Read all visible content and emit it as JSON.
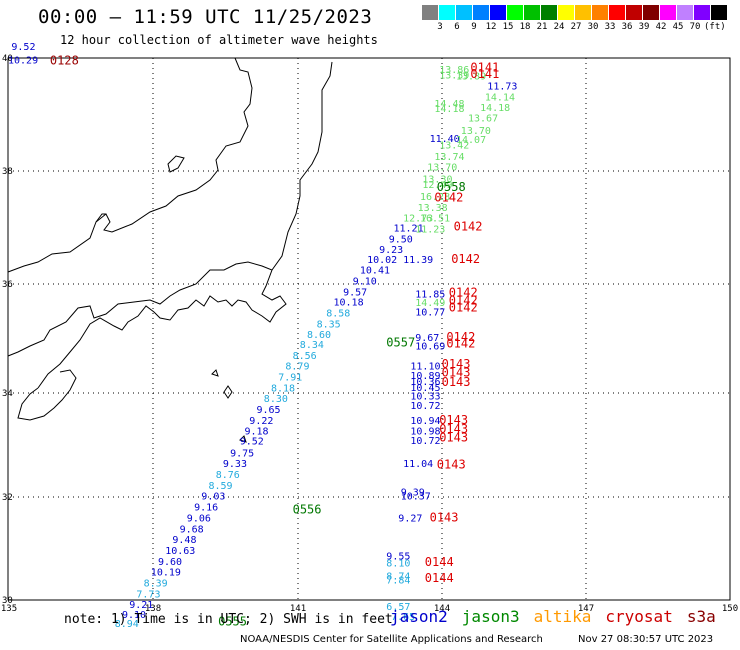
{
  "header": {
    "title": "00:00 – 11:59 UTC 11/25/2023",
    "subtitle": "12 hour collection of altimeter wave heights"
  },
  "colorbar": {
    "colors": [
      "#808080",
      "#00ffff",
      "#00c0ff",
      "#0080ff",
      "#0000ff",
      "#00ff00",
      "#00c000",
      "#008000",
      "#ffff00",
      "#ffc000",
      "#ff8000",
      "#ff0000",
      "#c00000",
      "#800000",
      "#ff00ff",
      "#c080ff",
      "#8000ff",
      "#000000"
    ],
    "labels": [
      "3",
      "6",
      "9",
      "12",
      "15",
      "18",
      "21",
      "24",
      "27",
      "30",
      "33",
      "36",
      "39",
      "42",
      "45",
      "70",
      "(ft)"
    ]
  },
  "axes": {
    "lat_labels": [
      "40",
      "38",
      "36",
      "34",
      "32",
      "30"
    ],
    "lon_labels": [
      "135",
      "138",
      "141",
      "144",
      "147",
      "150"
    ]
  },
  "wave_labels": [
    {
      "lon": 143.95,
      "lat": 39.72,
      "v": "13.86",
      "c": "#66dd66"
    },
    {
      "lon": 143.95,
      "lat": 39.62,
      "v": "13.39",
      "c": "#66dd66"
    },
    {
      "lon": 144.3,
      "lat": 39.6,
      "v": "13.89",
      "c": "#66dd66"
    },
    {
      "lon": 144.95,
      "lat": 39.42,
      "v": "11.73",
      "c": "#0000cc"
    },
    {
      "lon": 144.9,
      "lat": 39.22,
      "v": "14.14",
      "c": "#66dd66"
    },
    {
      "lon": 143.85,
      "lat": 39.1,
      "v": "14.48",
      "c": "#66dd66"
    },
    {
      "lon": 143.85,
      "lat": 39.0,
      "v": "14.18",
      "c": "#66dd66"
    },
    {
      "lon": 144.8,
      "lat": 39.02,
      "v": "14.18",
      "c": "#66dd66"
    },
    {
      "lon": 144.55,
      "lat": 38.83,
      "v": "13.67",
      "c": "#66dd66"
    },
    {
      "lon": 144.4,
      "lat": 38.6,
      "v": "13.70",
      "c": "#66dd66"
    },
    {
      "lon": 143.75,
      "lat": 38.45,
      "v": "11.40",
      "c": "#0000cc"
    },
    {
      "lon": 144.3,
      "lat": 38.43,
      "v": "14.07",
      "c": "#66dd66"
    },
    {
      "lon": 143.95,
      "lat": 38.33,
      "v": "13.42",
      "c": "#66dd66"
    },
    {
      "lon": 143.85,
      "lat": 38.12,
      "v": "13.74",
      "c": "#66dd66"
    },
    {
      "lon": 143.7,
      "lat": 37.92,
      "v": "13.70",
      "c": "#66dd66"
    },
    {
      "lon": 143.6,
      "lat": 37.7,
      "v": "13.30",
      "c": "#66dd66"
    },
    {
      "lon": 143.6,
      "lat": 37.6,
      "v": "12.49",
      "c": "#66dd66"
    },
    {
      "lon": 143.55,
      "lat": 37.38,
      "v": "16.28",
      "c": "#66dd66"
    },
    {
      "lon": 143.5,
      "lat": 37.18,
      "v": "13.38",
      "c": "#66dd66"
    },
    {
      "lon": 143.2,
      "lat": 36.98,
      "v": "12.73",
      "c": "#66dd66"
    },
    {
      "lon": 143.55,
      "lat": 36.98,
      "v": "16.51",
      "c": "#66dd66"
    },
    {
      "lon": 143.0,
      "lat": 36.8,
      "v": "11.21",
      "c": "#0000cc"
    },
    {
      "lon": 143.45,
      "lat": 36.78,
      "v": "11.23",
      "c": "#66dd66"
    },
    {
      "lon": 142.9,
      "lat": 36.6,
      "v": "9.50",
      "c": "#0000cc"
    },
    {
      "lon": 142.7,
      "lat": 36.4,
      "v": "9.23",
      "c": "#0000cc"
    },
    {
      "lon": 142.45,
      "lat": 36.22,
      "v": "10.02",
      "c": "#0000cc"
    },
    {
      "lon": 143.2,
      "lat": 36.22,
      "v": "11.39",
      "c": "#0000cc"
    },
    {
      "lon": 142.3,
      "lat": 36.02,
      "v": "10.41",
      "c": "#0000cc"
    },
    {
      "lon": 142.15,
      "lat": 35.82,
      "v": "9.10",
      "c": "#0000cc"
    },
    {
      "lon": 141.95,
      "lat": 35.62,
      "v": "9.57",
      "c": "#0000cc"
    },
    {
      "lon": 143.45,
      "lat": 35.58,
      "v": "11.85",
      "c": "#0000cc"
    },
    {
      "lon": 141.75,
      "lat": 35.43,
      "v": "10.18",
      "c": "#0000cc"
    },
    {
      "lon": 143.45,
      "lat": 35.42,
      "v": "14.49",
      "c": "#66dd66"
    },
    {
      "lon": 141.6,
      "lat": 35.23,
      "v": "8.58",
      "c": "#22aadd"
    },
    {
      "lon": 143.45,
      "lat": 35.25,
      "v": "10.77",
      "c": "#0000cc"
    },
    {
      "lon": 141.4,
      "lat": 35.03,
      "v": "8.35",
      "c": "#22aadd"
    },
    {
      "lon": 141.2,
      "lat": 34.83,
      "v": "8.60",
      "c": "#22aadd"
    },
    {
      "lon": 143.45,
      "lat": 34.78,
      "v": "9.67",
      "c": "#0000cc"
    },
    {
      "lon": 141.05,
      "lat": 34.65,
      "v": "8.34",
      "c": "#22aadd"
    },
    {
      "lon": 143.45,
      "lat": 34.62,
      "v": "10.69",
      "c": "#0000cc"
    },
    {
      "lon": 140.9,
      "lat": 34.45,
      "v": "8.56",
      "c": "#22aadd"
    },
    {
      "lon": 140.75,
      "lat": 34.25,
      "v": "8.79",
      "c": "#22aadd"
    },
    {
      "lon": 143.35,
      "lat": 34.25,
      "v": "11.10",
      "c": "#0000cc"
    },
    {
      "lon": 140.6,
      "lat": 34.05,
      "v": "7.91",
      "c": "#22aadd"
    },
    {
      "lon": 143.35,
      "lat": 34.08,
      "v": "10.89",
      "c": "#0000cc"
    },
    {
      "lon": 143.35,
      "lat": 33.97,
      "v": "10.36",
      "c": "#0000cc"
    },
    {
      "lon": 140.45,
      "lat": 33.85,
      "v": "8.18",
      "c": "#22aadd"
    },
    {
      "lon": 143.35,
      "lat": 33.86,
      "v": "10.45",
      "c": "#0000cc"
    },
    {
      "lon": 143.35,
      "lat": 33.7,
      "v": "10.33",
      "c": "#0000cc"
    },
    {
      "lon": 140.3,
      "lat": 33.65,
      "v": "8.30",
      "c": "#22aadd"
    },
    {
      "lon": 143.35,
      "lat": 33.52,
      "v": "10.72",
      "c": "#0000cc"
    },
    {
      "lon": 140.15,
      "lat": 33.45,
      "v": "9.65",
      "c": "#0000cc"
    },
    {
      "lon": 140.0,
      "lat": 33.25,
      "v": "9.22",
      "c": "#0000cc"
    },
    {
      "lon": 143.35,
      "lat": 33.25,
      "v": "10.94",
      "c": "#0000cc"
    },
    {
      "lon": 139.9,
      "lat": 33.05,
      "v": "9.18",
      "c": "#0000cc"
    },
    {
      "lon": 143.35,
      "lat": 33.05,
      "v": "10.98",
      "c": "#0000cc"
    },
    {
      "lon": 139.8,
      "lat": 32.87,
      "v": "9.52",
      "c": "#0000cc"
    },
    {
      "lon": 143.35,
      "lat": 32.88,
      "v": "10.72",
      "c": "#0000cc"
    },
    {
      "lon": 139.6,
      "lat": 32.65,
      "v": "9.75",
      "c": "#0000cc"
    },
    {
      "lon": 139.45,
      "lat": 32.45,
      "v": "9.33",
      "c": "#0000cc"
    },
    {
      "lon": 143.2,
      "lat": 32.45,
      "v": "11.04",
      "c": "#0000cc"
    },
    {
      "lon": 139.3,
      "lat": 32.25,
      "v": "8.76",
      "c": "#22aadd"
    },
    {
      "lon": 139.15,
      "lat": 32.05,
      "v": "8.59",
      "c": "#22aadd"
    },
    {
      "lon": 143.15,
      "lat": 31.93,
      "v": "9.39",
      "c": "#0000cc"
    },
    {
      "lon": 143.15,
      "lat": 31.85,
      "v": "10.37",
      "c": "#0000cc"
    },
    {
      "lon": 139.0,
      "lat": 31.85,
      "v": "9.03",
      "c": "#0000cc"
    },
    {
      "lon": 138.85,
      "lat": 31.65,
      "v": "9.16",
      "c": "#0000cc"
    },
    {
      "lon": 138.7,
      "lat": 31.45,
      "v": "9.06",
      "c": "#0000cc"
    },
    {
      "lon": 143.1,
      "lat": 31.45,
      "v": "9.27",
      "c": "#0000cc"
    },
    {
      "lon": 138.55,
      "lat": 31.25,
      "v": "9.68",
      "c": "#0000cc"
    },
    {
      "lon": 138.4,
      "lat": 31.05,
      "v": "9.48",
      "c": "#0000cc"
    },
    {
      "lon": 138.25,
      "lat": 30.85,
      "v": "10.63",
      "c": "#0000cc"
    },
    {
      "lon": 142.85,
      "lat": 30.75,
      "v": "9.55",
      "c": "#0000cc"
    },
    {
      "lon": 138.1,
      "lat": 30.65,
      "v": "9.60",
      "c": "#0000cc"
    },
    {
      "lon": 142.85,
      "lat": 30.62,
      "v": "8.10",
      "c": "#22aadd"
    },
    {
      "lon": 137.95,
      "lat": 30.45,
      "v": "10.19",
      "c": "#0000cc"
    },
    {
      "lon": 142.85,
      "lat": 30.38,
      "v": "8.74",
      "c": "#22aadd"
    },
    {
      "lon": 142.85,
      "lat": 30.3,
      "v": "7.84",
      "c": "#22aadd"
    },
    {
      "lon": 137.8,
      "lat": 30.25,
      "v": "8.39",
      "c": "#22aadd"
    },
    {
      "lon": 137.65,
      "lat": 30.05,
      "v": "7.73",
      "c": "#22aadd"
    },
    {
      "lon": 137.5,
      "lat": 29.85,
      "v": "9.21",
      "c": "#0000cc"
    },
    {
      "lon": 142.85,
      "lat": 29.82,
      "v": "6.57",
      "c": "#22aadd"
    },
    {
      "lon": 137.35,
      "lat": 29.67,
      "v": "9.10",
      "c": "#0000cc"
    },
    {
      "lon": 142.95,
      "lat": 29.63,
      "v": "7.65",
      "c": "#22aadd"
    },
    {
      "lon": 137.2,
      "lat": 29.5,
      "v": "8.94",
      "c": "#22aadd"
    },
    {
      "lon": 135.05,
      "lat": 40.15,
      "v": "9.52",
      "c": "#0000cc"
    },
    {
      "lon": 134.6,
      "lat": 39.9,
      "v": "10.29",
      "c": "#0000cc"
    }
  ],
  "time_labels": [
    {
      "lon": 144.6,
      "lat": 39.75,
      "v": "0141",
      "c": "#dd0000"
    },
    {
      "lon": 144.6,
      "lat": 39.63,
      "v": "0141",
      "c": "#dd0000"
    },
    {
      "lon": 135.85,
      "lat": 39.88,
      "v": "0128",
      "c": "#990000"
    },
    {
      "lon": 143.9,
      "lat": 37.55,
      "v": "0558",
      "c": "#007700"
    },
    {
      "lon": 143.85,
      "lat": 37.35,
      "v": "0142",
      "c": "#dd0000"
    },
    {
      "lon": 144.25,
      "lat": 36.82,
      "v": "0142",
      "c": "#dd0000"
    },
    {
      "lon": 144.2,
      "lat": 36.22,
      "v": "0142",
      "c": "#dd0000"
    },
    {
      "lon": 144.15,
      "lat": 35.6,
      "v": "0142",
      "c": "#dd0000"
    },
    {
      "lon": 144.15,
      "lat": 35.45,
      "v": "0142",
      "c": "#dd0000"
    },
    {
      "lon": 144.15,
      "lat": 35.32,
      "v": "0142",
      "c": "#dd0000"
    },
    {
      "lon": 142.85,
      "lat": 34.68,
      "v": "0557",
      "c": "#007700"
    },
    {
      "lon": 144.1,
      "lat": 34.78,
      "v": "0142",
      "c": "#dd0000"
    },
    {
      "lon": 144.1,
      "lat": 34.66,
      "v": "0142",
      "c": "#dd0000"
    },
    {
      "lon": 144.0,
      "lat": 34.28,
      "v": "0143",
      "c": "#dd0000"
    },
    {
      "lon": 144.0,
      "lat": 34.12,
      "v": "0143",
      "c": "#dd0000"
    },
    {
      "lon": 144.0,
      "lat": 33.95,
      "v": "0143",
      "c": "#dd0000"
    },
    {
      "lon": 143.95,
      "lat": 33.25,
      "v": "0143",
      "c": "#dd0000"
    },
    {
      "lon": 143.95,
      "lat": 33.08,
      "v": "0143",
      "c": "#dd0000"
    },
    {
      "lon": 143.95,
      "lat": 32.92,
      "v": "0143",
      "c": "#dd0000"
    },
    {
      "lon": 143.9,
      "lat": 32.43,
      "v": "0143",
      "c": "#dd0000"
    },
    {
      "lon": 140.9,
      "lat": 31.6,
      "v": "0556",
      "c": "#007700"
    },
    {
      "lon": 143.75,
      "lat": 31.45,
      "v": "0143",
      "c": "#dd0000"
    },
    {
      "lon": 143.65,
      "lat": 30.63,
      "v": "0144",
      "c": "#dd0000"
    },
    {
      "lon": 143.65,
      "lat": 30.33,
      "v": "0144",
      "c": "#dd0000"
    },
    {
      "lon": 139.35,
      "lat": 29.53,
      "v": "0555",
      "c": "#007700"
    }
  ],
  "footer": {
    "note": "note: 1) Time is in UTC; 2) SWH is in feet",
    "legend": [
      {
        "label": "jason2",
        "color": "#0000cc"
      },
      {
        "label": "jason3",
        "color": "#008800"
      },
      {
        "label": "altika",
        "color": "#ff9900"
      },
      {
        "label": "cryosat",
        "color": "#cc0000"
      },
      {
        "label": "s3a",
        "color": "#880000"
      }
    ],
    "credit": "NOAA/NESDIS Center for Satellite Applications and Research",
    "stamp": "Nov 27 08:30:57 UTC 2023"
  }
}
